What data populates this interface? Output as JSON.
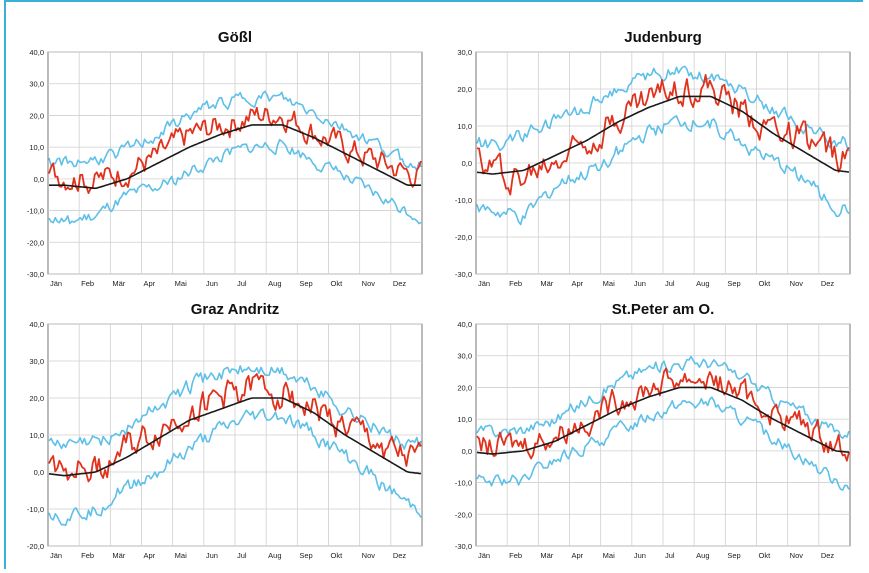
{
  "colors": {
    "mean": "#1a1a1a",
    "observed": "#e0321c",
    "band": "#5ec0e8",
    "frame": "#3ab0d6"
  },
  "chart_data": [
    {
      "type": "line",
      "title": "Gößl",
      "ylim": [
        -30,
        40
      ],
      "yticks": [
        "-30,0",
        "-20,0",
        "-10,0",
        "0,0",
        "10,0",
        "20,0",
        "30,0",
        "40,0"
      ],
      "ytick_values": [
        -30,
        -20,
        -10,
        0,
        10,
        20,
        30,
        40
      ],
      "categories": [
        "Jän",
        "Feb",
        "Mär",
        "Apr",
        "Mai",
        "Jun",
        "Jul",
        "Aug",
        "Sep",
        "Okt",
        "Nov",
        "Dez"
      ],
      "grid": true,
      "series": [
        {
          "values": [
            -2,
            -3,
            0,
            5,
            10,
            14,
            17,
            17,
            13,
            8,
            3,
            -2
          ],
          "color": "#1a1a1a"
        },
        {
          "values": [
            1,
            -1,
            3,
            7,
            14,
            17,
            20,
            21,
            15,
            10,
            6,
            2
          ],
          "color": "#e0321c"
        },
        {
          "values": [
            5,
            6,
            9,
            14,
            20,
            24,
            26,
            25,
            21,
            16,
            11,
            5
          ],
          "color": "#5ec0e8"
        },
        {
          "values": [
            -14,
            -12,
            -6,
            -3,
            2,
            7,
            10,
            11,
            6,
            0,
            -5,
            -10
          ],
          "color": "#5ec0e8"
        }
      ]
    },
    {
      "type": "line",
      "title": "Judenburg",
      "ylim": [
        -30,
        30
      ],
      "yticks": [
        "-30,0",
        "-20,0",
        "-10,0",
        "0,0",
        "10,0",
        "20,0",
        "30,0"
      ],
      "ytick_values": [
        -30,
        -20,
        -10,
        0,
        10,
        20,
        30
      ],
      "categories": [
        "Jän",
        "Feb",
        "Mär",
        "Apr",
        "Mai",
        "Jun",
        "Jul",
        "Aug",
        "Sep",
        "Okt",
        "Nov",
        "Dez"
      ],
      "grid": true,
      "series": [
        {
          "values": [
            -3,
            -2,
            2,
            6,
            11,
            15,
            18,
            18,
            14,
            8,
            3,
            -2
          ],
          "color": "#1a1a1a"
        },
        {
          "values": [
            -1,
            -4,
            1,
            7,
            13,
            18,
            21,
            20,
            14,
            10,
            6,
            2
          ],
          "color": "#e0321c"
        },
        {
          "values": [
            5,
            7,
            11,
            15,
            20,
            24,
            25,
            24,
            20,
            15,
            10,
            6
          ],
          "color": "#5ec0e8"
        },
        {
          "values": [
            -13,
            -15,
            -6,
            -3,
            3,
            8,
            11,
            11,
            6,
            0,
            -4,
            -12
          ],
          "color": "#5ec0e8"
        }
      ]
    },
    {
      "type": "line",
      "title": "Graz Andritz",
      "ylim": [
        -20,
        40
      ],
      "yticks": [
        "-20,0",
        "-10,0",
        "0,0",
        "10,0",
        "20,0",
        "30,0",
        "40,0"
      ],
      "ytick_values": [
        -20,
        -10,
        0,
        10,
        20,
        30,
        40
      ],
      "categories": [
        "Jän",
        "Feb",
        "Mär",
        "Apr",
        "Mai",
        "Jun",
        "Jul",
        "Aug",
        "Sep",
        "Okt",
        "Nov",
        "Dez"
      ],
      "grid": true,
      "series": [
        {
          "values": [
            -1,
            0,
            4,
            9,
            14,
            17,
            20,
            20,
            16,
            10,
            5,
            0
          ],
          "color": "#1a1a1a"
        },
        {
          "values": [
            2,
            1,
            6,
            11,
            17,
            20,
            23,
            22,
            17,
            12,
            8,
            3
          ],
          "color": "#e0321c"
        },
        {
          "values": [
            7,
            8,
            12,
            18,
            23,
            27,
            28,
            27,
            23,
            17,
            12,
            7
          ],
          "color": "#5ec0e8"
        },
        {
          "values": [
            -12,
            -10,
            -4,
            0,
            6,
            11,
            15,
            15,
            10,
            4,
            -2,
            -9
          ],
          "color": "#5ec0e8"
        }
      ]
    },
    {
      "type": "line",
      "title": "St.Peter am O.",
      "ylim": [
        -30,
        40
      ],
      "yticks": [
        "-30,0",
        "-20,0",
        "-10,0",
        "0,0",
        "10,0",
        "20,0",
        "30,0",
        "40,0"
      ],
      "ytick_values": [
        -30,
        -20,
        -10,
        0,
        10,
        20,
        30,
        40
      ],
      "categories": [
        "Jän",
        "Feb",
        "Mär",
        "Apr",
        "Mai",
        "Jun",
        "Jul",
        "Aug",
        "Sep",
        "Okt",
        "Nov",
        "Dez"
      ],
      "grid": true,
      "series": [
        {
          "values": [
            -1,
            0,
            3,
            8,
            13,
            17,
            20,
            20,
            16,
            10,
            5,
            0
          ],
          "color": "#1a1a1a"
        },
        {
          "values": [
            1,
            2,
            5,
            10,
            16,
            20,
            23,
            23,
            18,
            12,
            8,
            2
          ],
          "color": "#e0321c"
        },
        {
          "values": [
            6,
            7,
            10,
            16,
            22,
            26,
            28,
            28,
            23,
            17,
            12,
            6
          ],
          "color": "#5ec0e8"
        },
        {
          "values": [
            -10,
            -9,
            -3,
            1,
            6,
            11,
            15,
            15,
            10,
            4,
            -2,
            -10
          ],
          "color": "#5ec0e8"
        }
      ]
    }
  ]
}
